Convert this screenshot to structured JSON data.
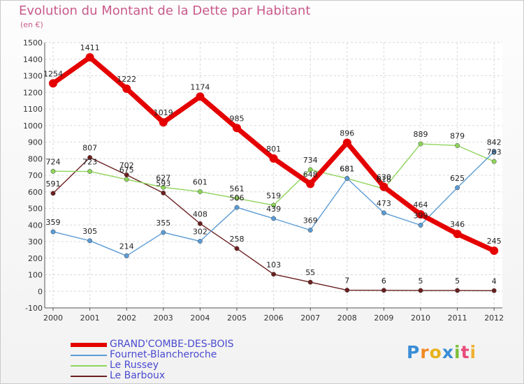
{
  "header": {
    "title": "Evolution du Montant de la Dette par Habitant",
    "subtitle": "(en €)"
  },
  "brand": {
    "letters": [
      "P",
      "r",
      "o",
      "x",
      "i",
      "t",
      "i"
    ],
    "colors": [
      "#3a8dd6",
      "#f08a24",
      "#e8b21c",
      "#3a8dd6",
      "#7cbf3a",
      "#e84b7a",
      "#f0b030"
    ]
  },
  "chart_data": {
    "type": "line",
    "title": "Evolution du Montant de la Dette par Habitant",
    "subtitle": "(en €)",
    "ylim": [
      -100,
      1500
    ],
    "y_ticks": [
      -100,
      0,
      100,
      200,
      300,
      400,
      500,
      600,
      700,
      800,
      900,
      1000,
      1100,
      1200,
      1300,
      1400,
      1500
    ],
    "categories": [
      "2000",
      "2001",
      "2002",
      "2003",
      "2004",
      "2005",
      "2006",
      "2007",
      "2008",
      "2009",
      "2010",
      "2011",
      "2012"
    ],
    "grid": true,
    "legend_position": "bottom-left",
    "series": [
      {
        "name": "GRAND'COMBE-DES-BOIS",
        "color": "#e50000",
        "values": [
          1254,
          1411,
          1222,
          1019,
          1174,
          985,
          801,
          648,
          896,
          630,
          464,
          346,
          245
        ]
      },
      {
        "name": "Fournet-Blancheroche",
        "color": "#5b9bd5",
        "values": [
          359,
          305,
          214,
          355,
          302,
          506,
          439,
          369,
          681,
          473,
          399,
          625,
          842
        ]
      },
      {
        "name": "Le Russey",
        "color": "#8ed45a",
        "values": [
          724,
          723,
          675,
          627,
          601,
          561,
          519,
          734,
          681,
          618,
          889,
          879,
          783
        ]
      },
      {
        "name": "Le Barboux",
        "color": "#6b1f1f",
        "values": [
          591,
          807,
          702,
          593,
          408,
          258,
          103,
          55,
          7,
          6,
          5,
          5,
          4
        ]
      }
    ]
  }
}
